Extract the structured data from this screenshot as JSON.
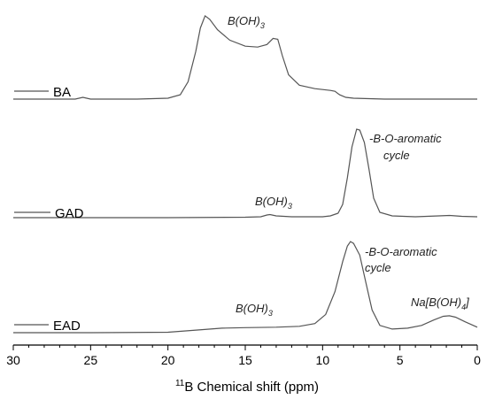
{
  "chart_data": {
    "type": "line",
    "xlabel_sup": "11",
    "xlabel_main": "B Chemical shift (ppm)",
    "xlim": [
      30,
      0
    ],
    "x_reversed": true,
    "x_ticks": [
      30,
      25,
      20,
      15,
      10,
      5,
      0
    ],
    "grid": false,
    "legend": "left",
    "series": [
      {
        "name": "BA",
        "baseline": 0,
        "points": [
          [
            30,
            0
          ],
          [
            26,
            0
          ],
          [
            25.5,
            0.02
          ],
          [
            25,
            0
          ],
          [
            22,
            0
          ],
          [
            20,
            0.01
          ],
          [
            19.2,
            0.05
          ],
          [
            18.7,
            0.2
          ],
          [
            18.2,
            0.55
          ],
          [
            17.9,
            0.82
          ],
          [
            17.6,
            0.96
          ],
          [
            17.3,
            0.92
          ],
          [
            16.8,
            0.8
          ],
          [
            16,
            0.68
          ],
          [
            15,
            0.61
          ],
          [
            14.2,
            0.6
          ],
          [
            13.6,
            0.63
          ],
          [
            13.2,
            0.7
          ],
          [
            12.9,
            0.69
          ],
          [
            12.6,
            0.5
          ],
          [
            12.2,
            0.28
          ],
          [
            11.5,
            0.16
          ],
          [
            10.5,
            0.12
          ],
          [
            9.5,
            0.1
          ],
          [
            9.2,
            0.09
          ],
          [
            8.9,
            0.05
          ],
          [
            8.5,
            0.02
          ],
          [
            8,
            0.01
          ],
          [
            6,
            0
          ],
          [
            0,
            0
          ]
        ]
      },
      {
        "name": "GAD",
        "baseline": 0,
        "points": [
          [
            30,
            0
          ],
          [
            20,
            0
          ],
          [
            15,
            0.005
          ],
          [
            14,
            0.01
          ],
          [
            13.6,
            0.03
          ],
          [
            13.4,
            0.035
          ],
          [
            13,
            0.02
          ],
          [
            12,
            0.01
          ],
          [
            10,
            0.01
          ],
          [
            9.5,
            0.02
          ],
          [
            9,
            0.05
          ],
          [
            8.7,
            0.15
          ],
          [
            8.4,
            0.45
          ],
          [
            8.1,
            0.8
          ],
          [
            7.8,
            1.0
          ],
          [
            7.6,
            0.99
          ],
          [
            7.3,
            0.85
          ],
          [
            7,
            0.55
          ],
          [
            6.7,
            0.22
          ],
          [
            6.3,
            0.06
          ],
          [
            5.5,
            0.02
          ],
          [
            4,
            0.01
          ],
          [
            2.5,
            0.02
          ],
          [
            1.8,
            0.025
          ],
          [
            1,
            0.015
          ],
          [
            0,
            0.01
          ]
        ]
      },
      {
        "name": "EAD",
        "baseline": 0,
        "points": [
          [
            30,
            0
          ],
          [
            25,
            0
          ],
          [
            20,
            0.005
          ],
          [
            18,
            0.03
          ],
          [
            16.5,
            0.05
          ],
          [
            15,
            0.055
          ],
          [
            13,
            0.06
          ],
          [
            11.5,
            0.07
          ],
          [
            10.5,
            0.1
          ],
          [
            9.8,
            0.2
          ],
          [
            9.2,
            0.45
          ],
          [
            8.7,
            0.78
          ],
          [
            8.4,
            0.95
          ],
          [
            8.2,
            1.0
          ],
          [
            8,
            0.98
          ],
          [
            7.6,
            0.85
          ],
          [
            7.2,
            0.55
          ],
          [
            6.8,
            0.25
          ],
          [
            6.3,
            0.08
          ],
          [
            5.5,
            0.04
          ],
          [
            4.5,
            0.05
          ],
          [
            3.6,
            0.08
          ],
          [
            2.8,
            0.14
          ],
          [
            2.2,
            0.18
          ],
          [
            1.8,
            0.185
          ],
          [
            1.4,
            0.17
          ],
          [
            0.8,
            0.12
          ],
          [
            0,
            0.06
          ]
        ]
      }
    ],
    "annotations": [
      {
        "text": "B(OH)",
        "sub": "3"
      },
      {
        "line1": "-B-O-aromatic",
        "line2": "cycle"
      },
      {
        "text": "B(OH)",
        "sub": "3"
      },
      {
        "line1": "-B-O-aromatic",
        "line2": "cycle"
      },
      {
        "text": "B(OH)",
        "sub": "3"
      },
      {
        "text": "Na[B(OH)",
        "sub": "4",
        "tail": "]"
      }
    ]
  }
}
